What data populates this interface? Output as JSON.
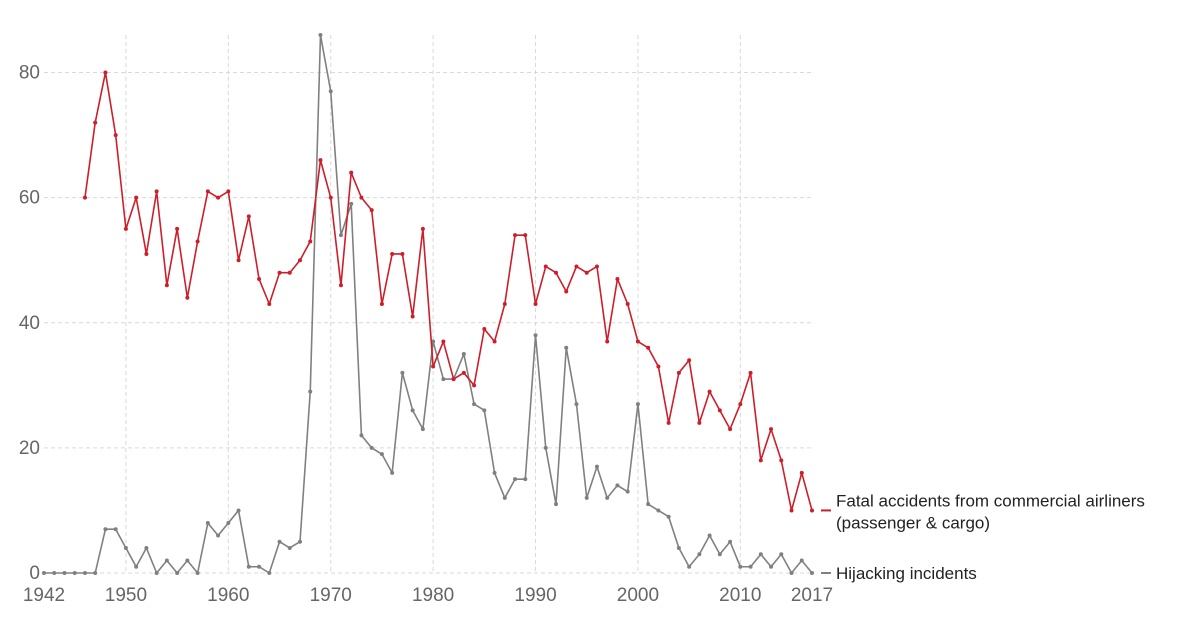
{
  "chart_data": {
    "type": "line",
    "title": "",
    "xlabel": "",
    "ylabel": "",
    "xlim": [
      1942,
      2017
    ],
    "ylim": [
      0,
      86
    ],
    "grid": true,
    "legend_placement": "right, at line ends",
    "x_tick_labels": [
      "1942",
      "1950",
      "1960",
      "1970",
      "1980",
      "1990",
      "2000",
      "2010",
      "2017"
    ],
    "x_tick_values": [
      1942,
      1950,
      1960,
      1970,
      1980,
      1990,
      2000,
      2010,
      2017
    ],
    "y_ticks": [
      0,
      20,
      40,
      60,
      80
    ],
    "y_tick_labels": [
      "0",
      "20",
      "40",
      "60",
      "80"
    ],
    "series": [
      {
        "name": "Fatal accidents from commercial airliners (passenger & cargo)",
        "label_lines": [
          "Fatal accidents from commercial airliners",
          "(passenger & cargo)"
        ],
        "color": "#cc1f2a",
        "x": [
          1946,
          1947,
          1948,
          1949,
          1950,
          1951,
          1952,
          1953,
          1954,
          1955,
          1956,
          1957,
          1958,
          1959,
          1960,
          1961,
          1962,
          1963,
          1964,
          1965,
          1966,
          1967,
          1968,
          1969,
          1970,
          1971,
          1972,
          1973,
          1974,
          1975,
          1976,
          1977,
          1978,
          1979,
          1980,
          1981,
          1982,
          1983,
          1984,
          1985,
          1986,
          1987,
          1988,
          1989,
          1990,
          1991,
          1992,
          1993,
          1994,
          1995,
          1996,
          1997,
          1998,
          1999,
          2000,
          2001,
          2002,
          2003,
          2004,
          2005,
          2006,
          2007,
          2008,
          2009,
          2010,
          2011,
          2012,
          2013,
          2014,
          2015,
          2016,
          2017
        ],
        "values": [
          60,
          72,
          80,
          70,
          55,
          60,
          51,
          61,
          46,
          55,
          44,
          53,
          61,
          60,
          61,
          50,
          57,
          47,
          43,
          48,
          48,
          50,
          53,
          66,
          60,
          46,
          64,
          60,
          58,
          43,
          51,
          51,
          41,
          55,
          33,
          37,
          31,
          32,
          30,
          39,
          37,
          43,
          54,
          54,
          43,
          49,
          48,
          45,
          49,
          48,
          49,
          37,
          47,
          43,
          37,
          36,
          33,
          24,
          32,
          34,
          24,
          29,
          26,
          23,
          27,
          32,
          18,
          23,
          18,
          10,
          16,
          10
        ]
      },
      {
        "name": "Hijacking incidents",
        "label_lines": [
          "Hijacking incidents"
        ],
        "color": "#808080",
        "x": [
          1942,
          1943,
          1944,
          1945,
          1946,
          1947,
          1948,
          1949,
          1950,
          1951,
          1952,
          1953,
          1954,
          1955,
          1956,
          1957,
          1958,
          1959,
          1960,
          1961,
          1962,
          1963,
          1964,
          1965,
          1966,
          1967,
          1968,
          1969,
          1970,
          1971,
          1972,
          1973,
          1974,
          1975,
          1976,
          1977,
          1978,
          1979,
          1980,
          1981,
          1982,
          1983,
          1984,
          1985,
          1986,
          1987,
          1988,
          1989,
          1990,
          1991,
          1992,
          1993,
          1994,
          1995,
          1996,
          1997,
          1998,
          1999,
          2000,
          2001,
          2002,
          2003,
          2004,
          2005,
          2006,
          2007,
          2008,
          2009,
          2010,
          2011,
          2012,
          2013,
          2014,
          2015,
          2016,
          2017
        ],
        "values": [
          0,
          0,
          0,
          0,
          0,
          0,
          7,
          7,
          4,
          1,
          4,
          0,
          2,
          0,
          2,
          0,
          8,
          6,
          8,
          10,
          1,
          1,
          0,
          5,
          4,
          5,
          29,
          86,
          77,
          54,
          59,
          22,
          20,
          19,
          16,
          32,
          26,
          23,
          37,
          31,
          31,
          35,
          27,
          26,
          16,
          12,
          15,
          15,
          38,
          20,
          11,
          36,
          27,
          12,
          17,
          12,
          14,
          13,
          27,
          11,
          10,
          9,
          4,
          1,
          3,
          6,
          3,
          5,
          1,
          1,
          3,
          1,
          3,
          0,
          2,
          0
        ]
      }
    ]
  }
}
